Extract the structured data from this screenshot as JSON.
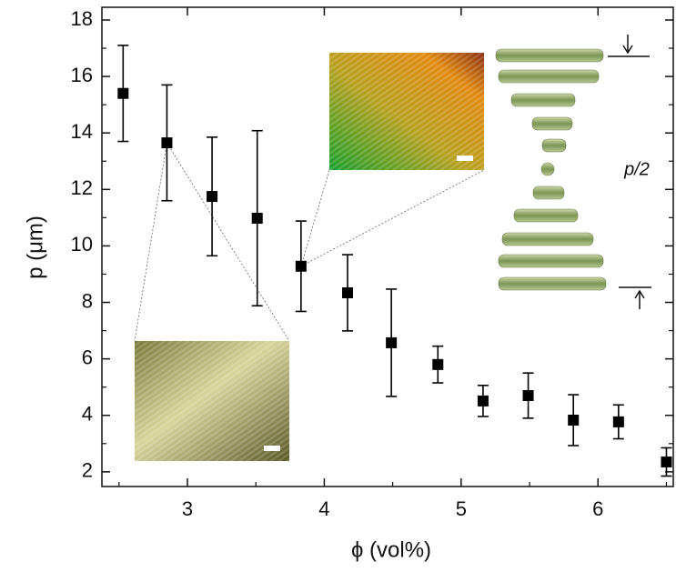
{
  "chart_data": {
    "type": "errorbar",
    "xlabel": "ϕ (vol%)",
    "ylabel": "p (μm)",
    "annotations": [
      "p/2"
    ],
    "xlim": [
      2.375,
      6.55
    ],
    "ylim": [
      1.48,
      18.45
    ],
    "xticks": [
      3,
      4,
      5,
      6
    ],
    "yticks": [
      2,
      4,
      6,
      8,
      10,
      12,
      14,
      16,
      18
    ],
    "xminorticks": [
      2.5,
      3.5,
      4.5,
      5.5,
      6.5
    ],
    "yminorticks": [
      3,
      5,
      7,
      9,
      11,
      13,
      15,
      17
    ],
    "series": [
      {
        "color": "#000000",
        "x": [
          2.53,
          2.85,
          3.18,
          3.51,
          3.83,
          4.17,
          4.49,
          4.83,
          5.16,
          5.49,
          5.82,
          6.15,
          6.5
        ],
        "values": [
          15.4,
          13.65,
          11.75,
          10.98,
          9.28,
          8.34,
          6.57,
          5.8,
          4.51,
          4.7,
          3.83,
          3.77,
          2.35
        ],
        "errors": [
          1.7,
          2.05,
          2.1,
          3.1,
          1.6,
          1.35,
          1.9,
          0.65,
          0.55,
          0.8,
          0.9,
          0.6,
          0.5
        ]
      }
    ]
  }
}
